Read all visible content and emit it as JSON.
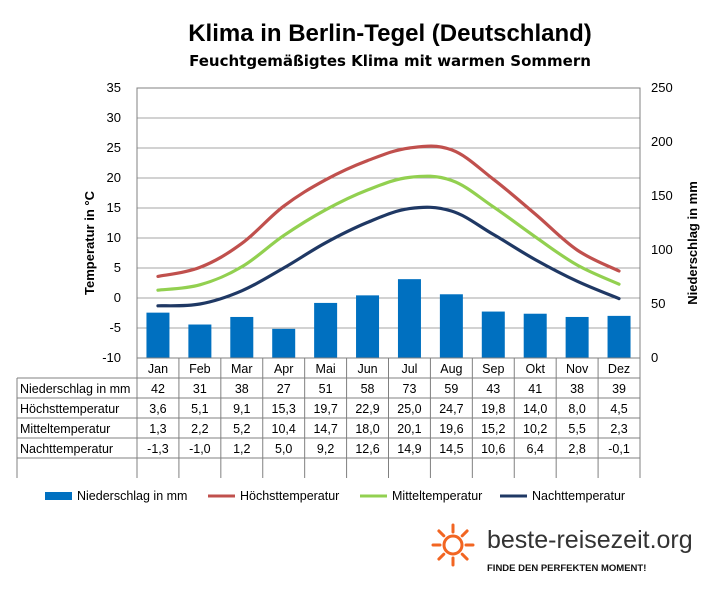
{
  "chart_data": {
    "type": "bar+line",
    "title": "Klima in Berlin-Tegel (Deutschland)",
    "subtitle": "Feuchtgemäßigtes Klima mit warmen Sommern",
    "categories": [
      "Jan",
      "Feb",
      "Mar",
      "Apr",
      "Mai",
      "Jun",
      "Jul",
      "Aug",
      "Sep",
      "Okt",
      "Nov",
      "Dez"
    ],
    "y_left": {
      "label": "Temperatur in °C",
      "min": -10,
      "max": 35,
      "step": 5
    },
    "y_right": {
      "label": "Niederschlag in mm",
      "min": 0,
      "max": 250,
      "step": 50
    },
    "bars": {
      "name": "Niederschlag in mm",
      "color": "#0070C0",
      "values": [
        42,
        31,
        38,
        27,
        51,
        58,
        73,
        59,
        43,
        41,
        38,
        39
      ]
    },
    "lines": [
      {
        "name": "Höchsttemperatur",
        "color": "#C0504D",
        "values": [
          3.6,
          5.1,
          9.1,
          15.3,
          19.7,
          22.9,
          25.0,
          24.7,
          19.8,
          14.0,
          8.0,
          4.5
        ]
      },
      {
        "name": "Mitteltemperatur",
        "color": "#92D050",
        "values": [
          1.3,
          2.2,
          5.2,
          10.4,
          14.7,
          18.0,
          20.1,
          19.6,
          15.2,
          10.2,
          5.5,
          2.3
        ]
      },
      {
        "name": "Nachttemperatur",
        "color": "#1F3864",
        "values": [
          -1.3,
          -1.0,
          1.2,
          5.0,
          9.2,
          12.6,
          14.9,
          14.5,
          10.6,
          6.4,
          2.8,
          -0.1
        ]
      }
    ],
    "table": [
      {
        "label": "Niederschlag in mm",
        "cells": [
          "42",
          "31",
          "38",
          "27",
          "51",
          "58",
          "73",
          "59",
          "43",
          "41",
          "38",
          "39"
        ]
      },
      {
        "label": "Höchsttemperatur",
        "cells": [
          "3,6",
          "5,1",
          "9,1",
          "15,3",
          "19,7",
          "22,9",
          "25,0",
          "24,7",
          "19,8",
          "14,0",
          "8,0",
          "4,5"
        ]
      },
      {
        "label": "Mitteltemperatur",
        "cells": [
          "1,3",
          "2,2",
          "5,2",
          "10,4",
          "14,7",
          "18,0",
          "20,1",
          "19,6",
          "15,2",
          "10,2",
          "5,5",
          "2,3"
        ]
      },
      {
        "label": "Nachttemperatur",
        "cells": [
          "-1,3",
          "-1,0",
          "1,2",
          "5,0",
          "9,2",
          "12,6",
          "14,9",
          "14,5",
          "10,6",
          "6,4",
          "2,8",
          "-0,1"
        ]
      }
    ],
    "legend_position": "bottom",
    "grid": true
  },
  "branding": {
    "logo_text": "beste-reisezeit.org",
    "tagline": "FINDE DEN PERFEKTEN MOMENT!",
    "sun_color": "#F26522"
  }
}
